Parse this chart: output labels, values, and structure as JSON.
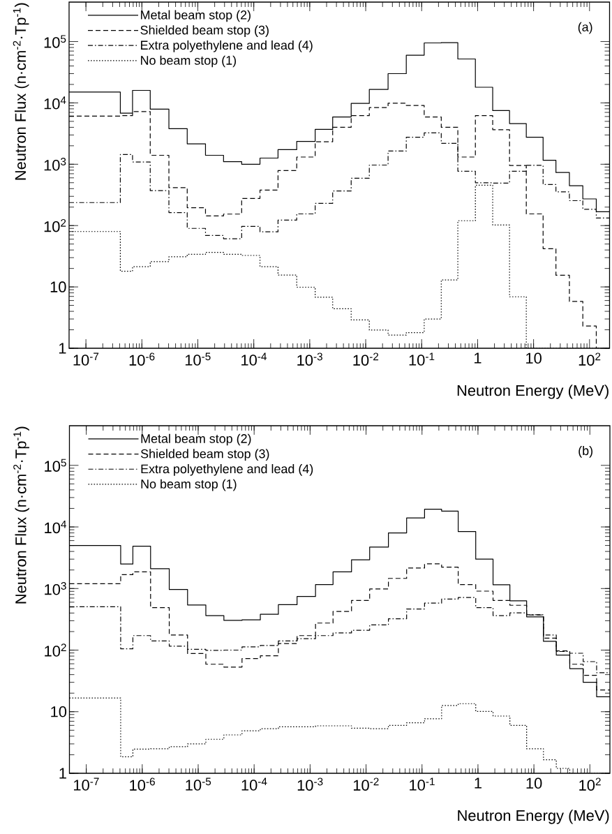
{
  "chart_data": [
    {
      "type": "histogram",
      "bins": [
        5e-08,
        4.12e-07,
        6.81e-07,
        1.41e-06,
        3.04e-06,
        6.46e-06,
        1.37e-05,
        2.88e-05,
        6.07e-05,
        0.000129,
        0.000271,
        0.000585,
        0.00125,
        0.00257,
        0.0055,
        0.0116,
        0.0251,
        0.0531,
        0.111,
        0.224,
        0.443,
        0.912,
        1.86,
        3.72,
        7.41,
        14.8,
        25.1,
        43.7,
        75.9,
        132,
        228
      ],
      "series": [
        {
          "name": "Metal beam stop (2)",
          "color": "#000000",
          "line_style": "solid",
          "values": [
            15000,
            6800,
            16000,
            7900,
            3800,
            2150,
            1400,
            1100,
            1000,
            1260,
            1730,
            2360,
            3700,
            5900,
            9800,
            16600,
            30000,
            60000,
            95000,
            96000,
            52000,
            18000,
            7500,
            4600,
            2750,
            1160,
            733,
            447,
            272,
            168
          ]
        },
        {
          "name": "Shielded beam stop (3)",
          "color": "#020202",
          "line_style": "dashed",
          "values": [
            6100,
            6200,
            7200,
            1400,
            415,
            196,
            144,
            154,
            277,
            378,
            790,
            1310,
            2330,
            4000,
            6200,
            8400,
            9900,
            9100,
            5900,
            4000,
            1310,
            6200,
            3660,
            955,
            155,
            42,
            15.5,
            5.8,
            2.3,
            null
          ]
        },
        {
          "name": "Extra polyethylene and lead (4)",
          "color": "#040404",
          "line_style": "dashdot",
          "values": [
            237,
            1440,
            1090,
            371,
            163,
            90,
            69,
            61,
            97,
            79,
            123,
            155,
            230,
            367,
            590,
            970,
            1640,
            2760,
            3240,
            2190,
            769,
            500,
            492,
            769,
            960,
            468,
            355,
            255,
            184,
            133
          ]
        },
        {
          "name": "No beam stop (1)",
          "color": "#060606",
          "line_style": "dotted",
          "values": [
            80,
            18,
            21.4,
            25.8,
            31,
            34,
            36.5,
            34,
            32.6,
            21.4,
            15.6,
            9.9,
            6.8,
            4.4,
            2.9,
            1.98,
            1.64,
            1.8,
            3.0,
            13,
            120,
            455,
            102,
            6.9,
            null,
            null,
            null,
            null,
            null,
            null
          ]
        }
      ],
      "xlim": [
        5e-08,
        228
      ],
      "ylim": [
        1,
        440000
      ],
      "log": "xy",
      "xticks": [
        {
          "value": 1e-07,
          "label": "10$^{-7}$"
        },
        {
          "value": 1e-06,
          "label": "10$^{-6}$"
        },
        {
          "value": 1e-05,
          "label": "10$^{-5}$"
        },
        {
          "value": 0.0001,
          "label": "10$^{-4}$"
        },
        {
          "value": 0.001,
          "label": "10$^{-3}$"
        },
        {
          "value": 0.01,
          "label": "10$^{-2}$"
        },
        {
          "value": 0.1,
          "label": "10$^{-1}$"
        },
        1,
        10,
        {
          "value": 100,
          "label": "10$^{2}$"
        }
      ],
      "yticks": [
        1,
        10,
        {
          "value": 100,
          "label": "10$^{2}$"
        },
        {
          "value": 1000,
          "label": "10$^{3}$"
        },
        {
          "value": 10000,
          "label": "10$^{4}$"
        },
        {
          "value": 100000,
          "label": "10$^{5}$"
        }
      ],
      "xlabel": "Neutron Energy (MeV)",
      "ylabel": "Neutron Flux (n·cm$^{-2}$·Tp$^{-1}$)",
      "legend": "top left",
      "annotations": [
        "(a)"
      ]
    },
    {
      "type": "histogram",
      "bins": [
        5e-08,
        4.12e-07,
        6.81e-07,
        1.41e-06,
        3.04e-06,
        6.46e-06,
        1.37e-05,
        2.88e-05,
        6.07e-05,
        0.000129,
        0.000271,
        0.000585,
        0.00125,
        0.00257,
        0.0055,
        0.0116,
        0.0251,
        0.0531,
        0.111,
        0.224,
        0.443,
        0.912,
        1.86,
        3.72,
        7.41,
        14.8,
        25.1,
        43.7,
        75.9,
        132,
        228
      ],
      "series": [
        {
          "name": "Metal beam stop (2)",
          "color": "#000000",
          "line_style": "solid",
          "values": [
            5000,
            2500,
            4870,
            2100,
            963,
            541,
            363,
            304,
            310,
            382,
            546,
            742,
            1160,
            1870,
            2930,
            4700,
            8000,
            14000,
            19400,
            18100,
            8400,
            3000,
            1150,
            630,
            347,
            139,
            83,
            50,
            30,
            17.5
          ]
        },
        {
          "name": "Shielded beam stop (3)",
          "color": "#020202",
          "line_style": "dashed",
          "values": [
            1200,
            1680,
            1870,
            490,
            176,
            88,
            59,
            53,
            73,
            81,
            128,
            172,
            275,
            425,
            640,
            982,
            1460,
            2150,
            2520,
            2220,
            1160,
            907,
            640,
            535,
            372,
            156,
            97,
            59,
            39,
            22.5
          ]
        },
        {
          "name": "Extra polyethylene and lead (4)",
          "color": "#040404",
          "line_style": "dashdot",
          "values": [
            505,
            105,
            172,
            141,
            116,
            103,
            99,
            100,
            113,
            119,
            141,
            153,
            172,
            190,
            210,
            257,
            323,
            466,
            580,
            673,
            715,
            490,
            363,
            402,
            375,
            176,
            95,
            89,
            65,
            43
          ]
        },
        {
          "name": "No beam stop (1)",
          "color": "#060606",
          "line_style": "dotted",
          "values": [
            16.7,
            1.85,
            2.47,
            2.5,
            2.7,
            3.0,
            3.57,
            4.2,
            4.9,
            5.3,
            5.7,
            5.7,
            5.9,
            5.9,
            5.4,
            5.3,
            6.0,
            6.6,
            7.7,
            12.6,
            13.5,
            10.1,
            8.5,
            6.0,
            2.5,
            1.66,
            1.2,
            null,
            null,
            null
          ]
        }
      ],
      "xlim": [
        5e-08,
        228
      ],
      "ylim": [
        1,
        440000
      ],
      "log": "xy",
      "xticks": [
        {
          "value": 1e-07,
          "label": "10$^{-7}$"
        },
        {
          "value": 1e-06,
          "label": "10$^{-6}$"
        },
        {
          "value": 1e-05,
          "label": "10$^{-5}$"
        },
        {
          "value": 0.0001,
          "label": "10$^{-4}$"
        },
        {
          "value": 0.001,
          "label": "10$^{-3}$"
        },
        {
          "value": 0.01,
          "label": "10$^{-2}$"
        },
        {
          "value": 0.1,
          "label": "10$^{-1}$"
        },
        1,
        10,
        {
          "value": 100,
          "label": "10$^{2}$"
        }
      ],
      "yticks": [
        1,
        10,
        {
          "value": 100,
          "label": "10$^{2}$"
        },
        {
          "value": 1000,
          "label": "10$^{3}$"
        },
        {
          "value": 10000,
          "label": "10$^{4}$"
        },
        {
          "value": 100000,
          "label": "10$^{5}$"
        }
      ],
      "xlabel": "Neutron Energy (MeV)",
      "ylabel": "Neutron Flux (n·cm$^{-2}$·Tp$^{-1}$)",
      "legend": "top left",
      "annotations": [
        "(b)"
      ]
    }
  ]
}
